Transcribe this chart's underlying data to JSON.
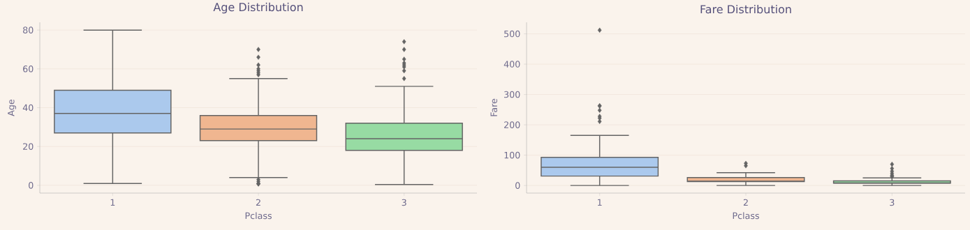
{
  "chart_data": [
    {
      "type": "box",
      "title": "Age Distribution",
      "xlabel": "Pclass",
      "ylabel": "Age",
      "categories": [
        "1",
        "2",
        "3"
      ],
      "colors": [
        "#abc9ed",
        "#f0b690",
        "#97dba3"
      ],
      "boxes": [
        {
          "low": 0.92,
          "q1": 27,
          "median": 37,
          "q3": 49,
          "high": 80
        },
        {
          "low": 4,
          "q1": 23,
          "median": 29,
          "q3": 36,
          "high": 55,
          "outliers": [
            57,
            58,
            59,
            60,
            62,
            66,
            70,
            0.67,
            0.83,
            1,
            2,
            3
          ]
        },
        {
          "low": 0.42,
          "q1": 18,
          "median": 24,
          "q3": 32,
          "high": 51,
          "outliers": [
            55,
            59,
            61,
            62,
            63,
            65,
            70,
            74
          ]
        }
      ],
      "ylim": [
        -4,
        84
      ],
      "yticks": [
        0,
        20,
        40,
        60,
        80
      ],
      "grid": "y",
      "marker": "diamond"
    },
    {
      "type": "box",
      "title": "Fare Distribution",
      "xlabel": "Pclass",
      "ylabel": "Fare",
      "categories": [
        "1",
        "2",
        "3"
      ],
      "colors": [
        "#abc9ed",
        "#f0b690",
        "#97dba3"
      ],
      "boxes": [
        {
          "low": 0,
          "q1": 31,
          "median": 60,
          "q3": 93,
          "high": 165,
          "outliers": [
            211,
            222,
            228,
            248,
            262,
            263,
            512
          ]
        },
        {
          "low": 0,
          "q1": 13,
          "median": 14,
          "q3": 26,
          "high": 42,
          "outliers": [
            65,
            73
          ]
        },
        {
          "low": 0,
          "q1": 7.8,
          "median": 8.1,
          "q3": 15,
          "high": 25,
          "outliers": [
            29,
            31,
            34,
            40,
            47,
            56,
            70
          ]
        }
      ],
      "ylim": [
        -25,
        538
      ],
      "yticks": [
        0,
        100,
        200,
        300,
        400,
        500
      ],
      "grid": "y",
      "marker": "diamond"
    }
  ]
}
